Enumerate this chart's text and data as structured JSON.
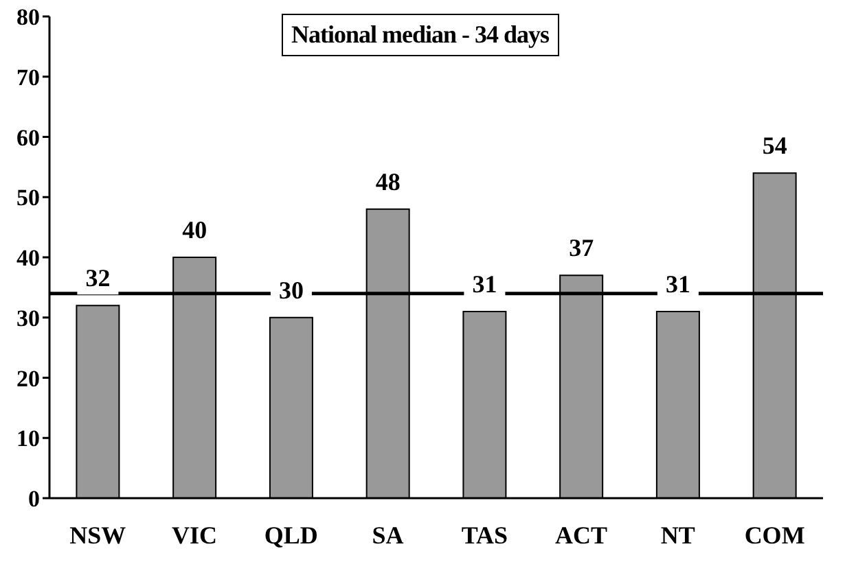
{
  "chart_data": {
    "type": "bar",
    "categories": [
      "NSW",
      "VIC",
      "QLD",
      "SA",
      "TAS",
      "ACT",
      "NT",
      "COM"
    ],
    "values": [
      32,
      40,
      30,
      48,
      31,
      37,
      31,
      54
    ],
    "color": "#999999",
    "ylim": [
      0,
      80
    ],
    "yticks": [
      0,
      10,
      20,
      30,
      40,
      50,
      60,
      70,
      80
    ],
    "data_labels": true,
    "ref_lines": [
      {
        "axis": "y",
        "value": 34,
        "label": "National median - 34 days",
        "color": "#000000"
      }
    ]
  }
}
